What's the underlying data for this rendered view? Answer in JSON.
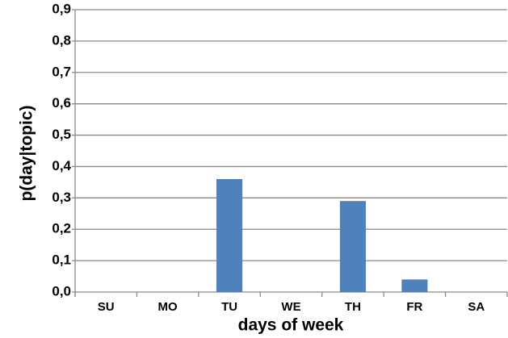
{
  "chart_data": {
    "type": "bar",
    "x_label": "days of week",
    "y_label": "p(day|topic)",
    "categories": [
      "SU",
      "MO",
      "TU",
      "WE",
      "TH",
      "FR",
      "SA"
    ],
    "values": [
      0,
      0,
      0.36,
      0,
      0.29,
      0.04,
      0
    ],
    "color": "#4f81bd",
    "ylim": [
      0,
      0.9
    ],
    "yticks": [
      {
        "value": 0,
        "label": "0,0"
      },
      {
        "value": 0.1,
        "label": "0,1"
      },
      {
        "value": 0.2,
        "label": "0,2"
      },
      {
        "value": 0.3,
        "label": "0,3"
      },
      {
        "value": 0.4,
        "label": "0,4"
      },
      {
        "value": 0.5,
        "label": "0,5"
      },
      {
        "value": 0.6,
        "label": "0,6"
      },
      {
        "value": 0.7,
        "label": "0,7"
      },
      {
        "value": 0.8,
        "label": "0,8"
      },
      {
        "value": 0.9,
        "label": "0,9"
      }
    ],
    "grid": true
  }
}
